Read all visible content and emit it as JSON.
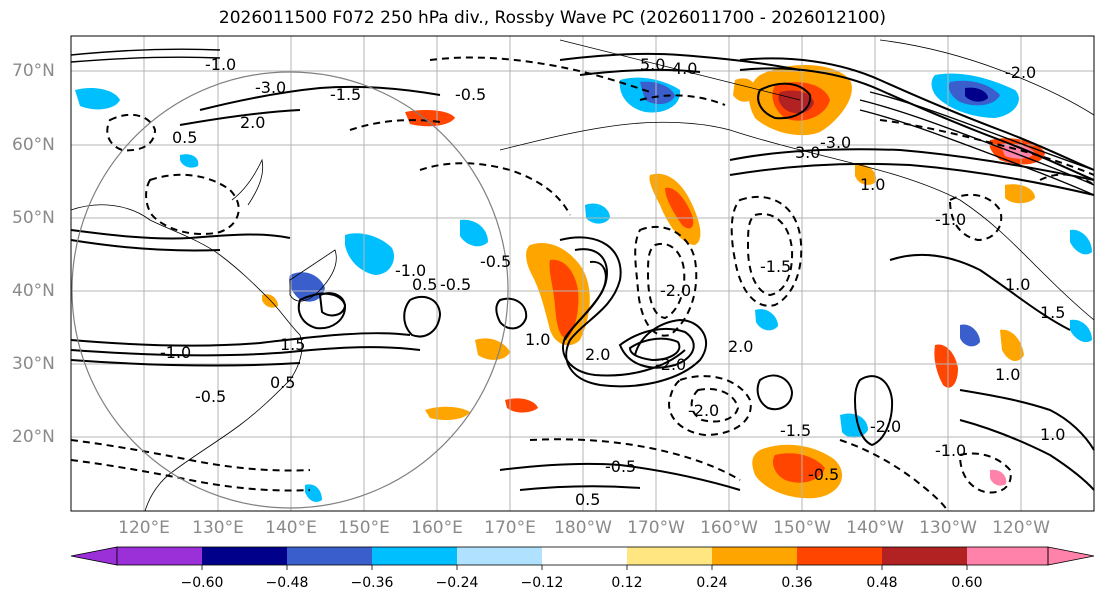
{
  "title": "2026011500 F072 250 hPa div., Rossby Wave PC (2026011700 - 2026012100)",
  "lat_labels": [
    "70°N",
    "60°N",
    "50°N",
    "40°N",
    "30°N",
    "20°N"
  ],
  "lon_labels": [
    "120°E",
    "130°E",
    "140°E",
    "150°E",
    "160°E",
    "170°E",
    "180°W",
    "170°W",
    "160°W",
    "150°W",
    "140°W",
    "130°W",
    "120°W"
  ],
  "colorbar": {
    "ticks": [
      "−0.60",
      "−0.48",
      "−0.36",
      "−0.24",
      "−0.12",
      "0.12",
      "0.24",
      "0.36",
      "0.48",
      "0.60"
    ],
    "colors": [
      "#9b30d9",
      "#00008b",
      "#3a5fcd",
      "#00bfff",
      "#b0e2ff",
      "#ffffff",
      "#ffe680",
      "#ffa500",
      "#ff4500",
      "#b22222",
      "#ff82ab"
    ]
  },
  "contour_labels": [
    "5.0",
    "4.0",
    "-1.0",
    "-0.5",
    "-1.5",
    "2.0",
    "-3.0",
    "0.5",
    "-0.5",
    "2.0",
    "1.0",
    "-2.0",
    "1.5",
    "-1.0",
    "0.5",
    "-0.5",
    "-0.5",
    "-2.0",
    "1.0",
    "0.5",
    "-1.0",
    "-0.5",
    "-1.5",
    "-2.0",
    "1.0",
    "0.5",
    "-0.5",
    "-1.0",
    "-2.0",
    "2.0",
    "1.0",
    "-3.0",
    "3.0",
    "-2.0",
    "-1.5",
    "-1.0",
    "1.5",
    "1.0"
  ]
}
